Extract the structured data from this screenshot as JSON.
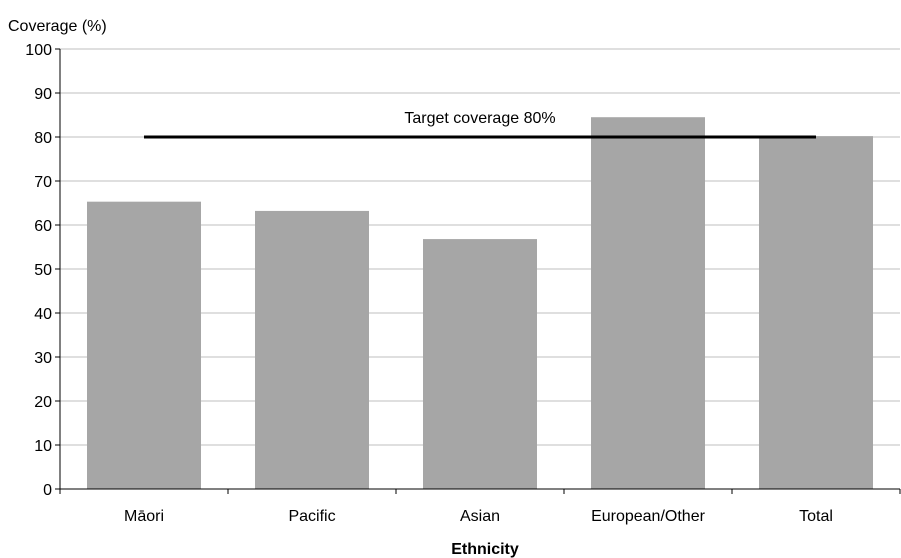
{
  "chart_data": {
    "type": "bar",
    "ylabel": "Coverage (%)",
    "xlabel": "Ethnicity",
    "categories": [
      "Māori",
      "Pacific",
      "Asian",
      "European/Other",
      "Total"
    ],
    "values": [
      65.3,
      63.2,
      56.8,
      84.5,
      80.2
    ],
    "ylim": [
      0,
      100
    ],
    "yticks": [
      "0",
      "10",
      "20",
      "30",
      "40",
      "50",
      "60",
      "70",
      "80",
      "90",
      "100"
    ],
    "grid": true,
    "legend": "none",
    "reference_line": {
      "label": "Target coverage 80%",
      "value": 80
    },
    "colors": {
      "bar": "#a6a6a6",
      "grid": "#bfbfbf",
      "reference_line": "#000000",
      "axis": "#000000"
    }
  }
}
